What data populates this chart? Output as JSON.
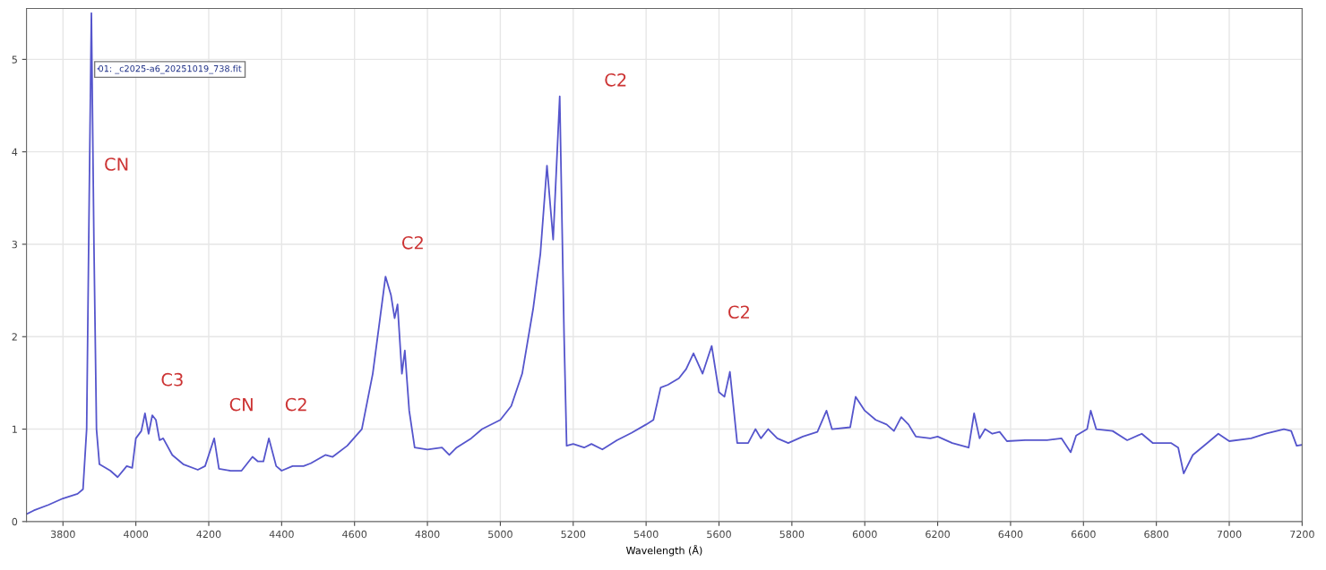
{
  "chart_data": {
    "type": "line",
    "xlabel": "Wavelength (Å)",
    "xlim": [
      3700,
      7200
    ],
    "ylim": [
      0,
      5.55
    ],
    "xticks": [
      3800,
      4000,
      4200,
      4400,
      4600,
      4800,
      5000,
      5200,
      5400,
      5600,
      5800,
      6000,
      6200,
      6400,
      6600,
      6800,
      7000,
      7200
    ],
    "yticks": [
      0,
      1,
      2,
      3,
      4,
      5
    ],
    "grid": true,
    "legend": "top left",
    "marker": "none",
    "line_style": "solid",
    "annotations": [
      {
        "text": "CN",
        "x": 3872,
        "y": 3.5
      },
      {
        "text": "C2",
        "x": 5163,
        "y": 4.6
      },
      {
        "text": "C2",
        "x": 4685,
        "y": 2.65
      },
      {
        "text": "C3",
        "x": 4025,
        "y": 1.17
      },
      {
        "text": "CN",
        "x": 4215,
        "y": 0.9
      },
      {
        "text": "C2",
        "x": 4365,
        "y": 0.9
      },
      {
        "text": "C2",
        "x": 5580,
        "y": 1.9
      }
    ],
    "series": [
      {
        "name": "01: _c2025-a6_20251019_738.fit",
        "color": "#5555cc",
        "x": [
          3700,
          3720,
          3760,
          3800,
          3840,
          3855,
          3865,
          3872,
          3878,
          3885,
          3892,
          3900,
          3930,
          3950,
          3975,
          3990,
          4000,
          4015,
          4025,
          4035,
          4045,
          4055,
          4065,
          4075,
          4100,
          4130,
          4170,
          4190,
          4215,
          4228,
          4260,
          4290,
          4320,
          4335,
          4350,
          4365,
          4385,
          4400,
          4430,
          4460,
          4480,
          4520,
          4540,
          4580,
          4620,
          4650,
          4670,
          4685,
          4700,
          4710,
          4718,
          4730,
          4738,
          4750,
          4765,
          4800,
          4840,
          4860,
          4880,
          4920,
          4950,
          5000,
          5030,
          5060,
          5090,
          5110,
          5128,
          5145,
          5163,
          5175,
          5182,
          5200,
          5230,
          5250,
          5280,
          5320,
          5360,
          5400,
          5420,
          5440,
          5460,
          5490,
          5510,
          5530,
          5555,
          5580,
          5600,
          5615,
          5630,
          5650,
          5680,
          5700,
          5715,
          5735,
          5760,
          5790,
          5830,
          5870,
          5895,
          5910,
          5960,
          5975,
          6000,
          6030,
          6060,
          6080,
          6100,
          6120,
          6140,
          6180,
          6200,
          6240,
          6285,
          6300,
          6315,
          6330,
          6350,
          6370,
          6390,
          6440,
          6500,
          6540,
          6565,
          6580,
          6610,
          6620,
          6635,
          6680,
          6720,
          6760,
          6790,
          6840,
          6860,
          6875,
          6900,
          6940,
          6970,
          7000,
          7060,
          7100,
          7150,
          7170,
          7185,
          7200
        ],
        "values": [
          0.08,
          0.12,
          0.18,
          0.25,
          0.3,
          0.35,
          1.0,
          3.5,
          5.5,
          3.0,
          1.0,
          0.62,
          0.55,
          0.48,
          0.6,
          0.58,
          0.9,
          0.98,
          1.17,
          0.95,
          1.15,
          1.1,
          0.88,
          0.9,
          0.72,
          0.62,
          0.56,
          0.6,
          0.9,
          0.57,
          0.55,
          0.55,
          0.7,
          0.65,
          0.65,
          0.9,
          0.6,
          0.55,
          0.6,
          0.6,
          0.63,
          0.72,
          0.7,
          0.82,
          1.0,
          1.6,
          2.2,
          2.65,
          2.45,
          2.2,
          2.35,
          1.6,
          1.85,
          1.2,
          0.8,
          0.78,
          0.8,
          0.72,
          0.8,
          0.9,
          1.0,
          1.1,
          1.25,
          1.6,
          2.3,
          2.9,
          3.85,
          3.05,
          4.6,
          2.0,
          0.82,
          0.84,
          0.8,
          0.84,
          0.78,
          0.88,
          0.96,
          1.05,
          1.1,
          1.45,
          1.48,
          1.55,
          1.65,
          1.82,
          1.6,
          1.9,
          1.4,
          1.35,
          1.62,
          0.85,
          0.85,
          1.0,
          0.9,
          1.0,
          0.9,
          0.85,
          0.92,
          0.97,
          1.2,
          1.0,
          1.02,
          1.35,
          1.2,
          1.1,
          1.05,
          0.98,
          1.13,
          1.05,
          0.92,
          0.9,
          0.92,
          0.85,
          0.8,
          1.17,
          0.9,
          1.0,
          0.95,
          0.97,
          0.87,
          0.88,
          0.88,
          0.9,
          0.75,
          0.93,
          1.0,
          1.2,
          1.0,
          0.98,
          0.88,
          0.95,
          0.85,
          0.85,
          0.8,
          0.52,
          0.72,
          0.85,
          0.95,
          0.87,
          0.9,
          0.95,
          1.0,
          0.98,
          0.82,
          0.83
        ]
      }
    ]
  }
}
